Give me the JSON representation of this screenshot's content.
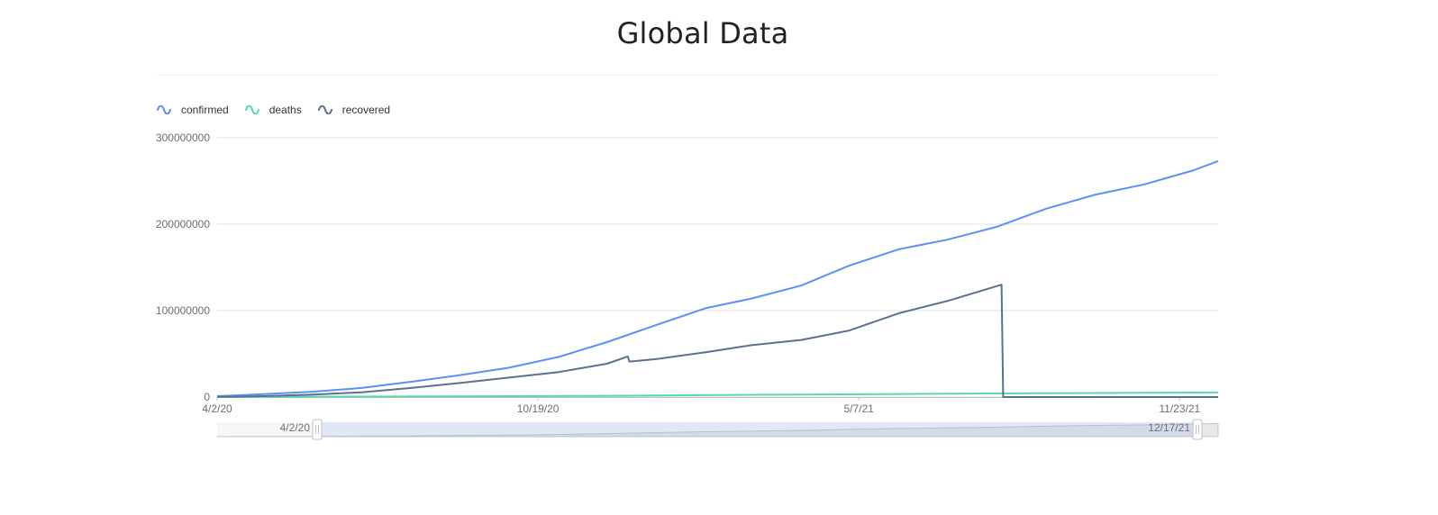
{
  "page": {
    "title": "Global Data"
  },
  "colors": {
    "confirmed": "#5b8ff9",
    "deaths": "#5ad8a6",
    "recovered": "#5d7092"
  },
  "legend": [
    {
      "key": "confirmed",
      "label": "confirmed",
      "icon": "wave-icon"
    },
    {
      "key": "deaths",
      "label": "deaths",
      "icon": "wave-icon"
    },
    {
      "key": "recovered",
      "label": "recovered",
      "icon": "wave-icon"
    }
  ],
  "chart_data": {
    "type": "line",
    "title": "Global Data",
    "xlabel": "",
    "ylabel": "",
    "x_range": [
      "4/2/20",
      "12/17/21"
    ],
    "ylim": [
      0,
      300000000
    ],
    "y_ticks": [
      "0",
      "100000000",
      "200000000",
      "300000000"
    ],
    "x_ticks": [
      "4/2/20",
      "10/19/20",
      "5/7/21",
      "11/23/21"
    ],
    "grid": true,
    "legend_position": "top-left",
    "series": [
      {
        "name": "confirmed",
        "points": [
          [
            "2020-04-02",
            1000000
          ],
          [
            "2020-05-01",
            3300000
          ],
          [
            "2020-06-01",
            6300000
          ],
          [
            "2020-07-01",
            10500000
          ],
          [
            "2020-08-01",
            17700000
          ],
          [
            "2020-09-01",
            25500000
          ],
          [
            "2020-10-01",
            34000000
          ],
          [
            "2020-11-01",
            46500000
          ],
          [
            "2020-12-01",
            63500000
          ],
          [
            "2021-01-01",
            83500000
          ],
          [
            "2021-02-01",
            103000000
          ],
          [
            "2021-03-01",
            114000000
          ],
          [
            "2021-04-01",
            129000000
          ],
          [
            "2021-05-01",
            152000000
          ],
          [
            "2021-06-01",
            171000000
          ],
          [
            "2021-07-01",
            182000000
          ],
          [
            "2021-08-01",
            197000000
          ],
          [
            "2021-09-01",
            218000000
          ],
          [
            "2021-10-01",
            234000000
          ],
          [
            "2021-11-01",
            246000000
          ],
          [
            "2021-12-01",
            262000000
          ],
          [
            "2021-12-17",
            273000000
          ]
        ]
      },
      {
        "name": "deaths",
        "points": [
          [
            "2020-04-02",
            50000
          ],
          [
            "2020-06-01",
            370000
          ],
          [
            "2020-09-01",
            850000
          ],
          [
            "2020-12-01",
            1460000
          ],
          [
            "2021-03-01",
            2560000
          ],
          [
            "2021-06-01",
            3550000
          ],
          [
            "2021-09-01",
            4520000
          ],
          [
            "2021-12-01",
            5210000
          ],
          [
            "2021-12-17",
            5360000
          ]
        ]
      },
      {
        "name": "recovered",
        "points": [
          [
            "2020-04-02",
            200000
          ],
          [
            "2020-05-01",
            1000000
          ],
          [
            "2020-06-01",
            2800000
          ],
          [
            "2020-07-01",
            5500000
          ],
          [
            "2020-08-01",
            10500000
          ],
          [
            "2020-09-01",
            16500000
          ],
          [
            "2020-10-01",
            22500000
          ],
          [
            "2020-11-01",
            29000000
          ],
          [
            "2020-12-01",
            38500000
          ],
          [
            "2020-12-14",
            47000000
          ],
          [
            "2020-12-15",
            41000000
          ],
          [
            "2021-01-01",
            44000000
          ],
          [
            "2021-02-01",
            52000000
          ],
          [
            "2021-03-01",
            60000000
          ],
          [
            "2021-04-01",
            66000000
          ],
          [
            "2021-05-01",
            77000000
          ],
          [
            "2021-06-01",
            97000000
          ],
          [
            "2021-07-01",
            111000000
          ],
          [
            "2021-08-04",
            130000000
          ],
          [
            "2021-08-05",
            0
          ],
          [
            "2021-12-17",
            0
          ]
        ]
      }
    ]
  },
  "slider": {
    "start_label": "4/2/20",
    "end_label": "12/17/21"
  }
}
